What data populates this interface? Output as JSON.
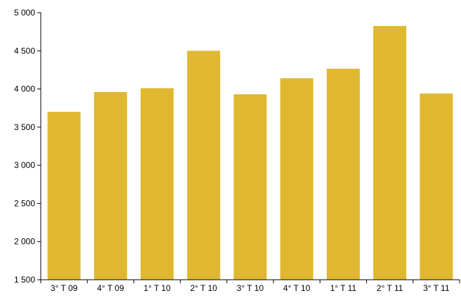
{
  "chart_data": {
    "type": "bar",
    "categories": [
      "3° T 09",
      "4° T 09",
      "1° T 10",
      "2° T 10",
      "3° T 10",
      "4° T 10",
      "1° T 11",
      "2° T 11",
      "3° T 11"
    ],
    "values": [
      3700,
      3960,
      4010,
      4500,
      3930,
      4140,
      4265,
      4825,
      3940
    ],
    "ylim": [
      1500,
      5000
    ],
    "yticks": [
      1500,
      2000,
      2500,
      3000,
      3500,
      4000,
      4500,
      5000
    ],
    "ytick_labels": [
      "1 500",
      "2 000",
      "2 500",
      "3 000",
      "3 500",
      "4 000",
      "4 500",
      "5 000"
    ],
    "bar_color": "#e0b830",
    "axis_color": "#000000",
    "grid": false,
    "legend": "none"
  }
}
